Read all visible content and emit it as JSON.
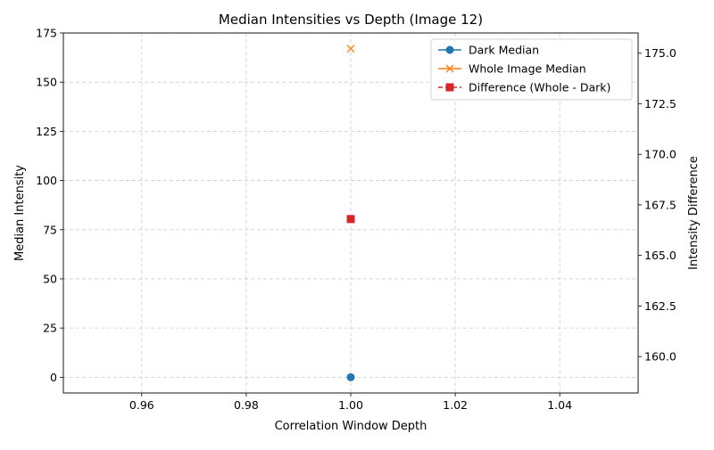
{
  "chart_data": {
    "type": "line",
    "title": "Median Intensities vs Depth (Image 12)",
    "xlabel": "Correlation Window Depth",
    "ylabel": "Median Intensity",
    "y2label": "Intensity Difference",
    "xlim": [
      0.945,
      1.055
    ],
    "ylim": [
      -8,
      175
    ],
    "y2lim": [
      158.2,
      176.0
    ],
    "x_ticks": [
      0.96,
      0.98,
      1.0,
      1.02,
      1.04
    ],
    "x_tick_labels": [
      "0.96",
      "0.98",
      "1.00",
      "1.02",
      "1.04"
    ],
    "y_ticks": [
      0,
      25,
      50,
      75,
      100,
      125,
      150,
      175
    ],
    "y_tick_labels": [
      "0",
      "25",
      "50",
      "75",
      "100",
      "125",
      "150",
      "175"
    ],
    "y2_ticks": [
      160.0,
      162.5,
      165.0,
      167.5,
      170.0,
      172.5,
      175.0
    ],
    "y2_tick_labels": [
      "160.0",
      "162.5",
      "165.0",
      "167.5",
      "170.0",
      "172.5",
      "175.0"
    ],
    "grid": true,
    "legend_position": "top-right",
    "series": [
      {
        "name": "Dark Median",
        "axis": "left",
        "marker": "circle",
        "line_style": "solid",
        "color": "#1f77b4",
        "x": [
          1.0
        ],
        "y": [
          0
        ]
      },
      {
        "name": "Whole Image Median",
        "axis": "left",
        "marker": "x",
        "line_style": "solid",
        "color": "#ff7f0e",
        "x": [
          1.0
        ],
        "y": [
          167
        ]
      },
      {
        "name": "Difference (Whole - Dark)",
        "axis": "right",
        "marker": "square",
        "line_style": "dashed",
        "color": "#d62728",
        "x": [
          1.0
        ],
        "y": [
          166.8
        ]
      }
    ]
  }
}
